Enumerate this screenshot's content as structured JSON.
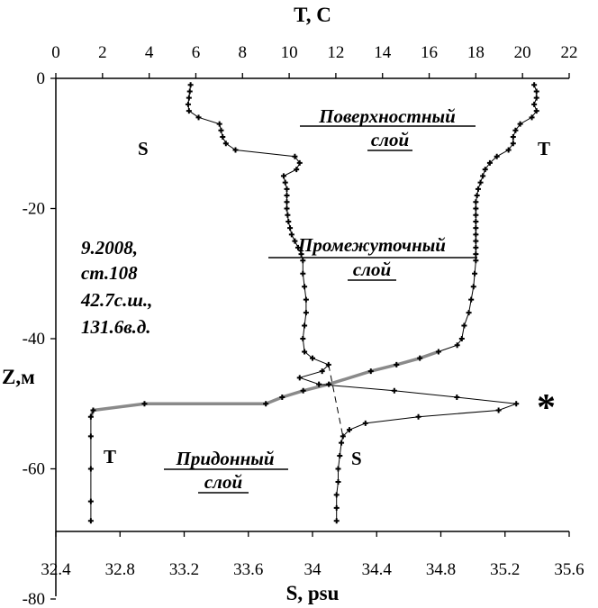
{
  "chart_data": {
    "type": "line",
    "title": "",
    "top_axis": {
      "label": "T, C",
      "range": [
        0,
        22
      ],
      "ticks": [
        "0",
        "2",
        "4",
        "6",
        "8",
        "10",
        "12",
        "14",
        "16",
        "18",
        "20",
        "22"
      ]
    },
    "bottom_axis": {
      "label": "S, psu",
      "range": [
        32.4,
        35.6
      ],
      "ticks": [
        "32.4",
        "32.8",
        "33.2",
        "33.6",
        "34",
        "34.4",
        "34.8",
        "35.2",
        "35.6"
      ]
    },
    "left_axis": {
      "label": "Z,м",
      "range": [
        0,
        -80
      ],
      "ticks": [
        "0",
        "-20",
        "-40",
        "-60",
        "-80"
      ]
    },
    "grid": false,
    "series": [
      {
        "name": "S",
        "color": "#000000",
        "points": [
          [
            33.24,
            -1
          ],
          [
            33.235,
            -2
          ],
          [
            33.23,
            -3
          ],
          [
            33.225,
            -4
          ],
          [
            33.23,
            -5
          ],
          [
            33.29,
            -6
          ],
          [
            33.42,
            -7
          ],
          [
            33.43,
            -8
          ],
          [
            33.44,
            -9
          ],
          [
            33.46,
            -10
          ],
          [
            33.52,
            -11
          ],
          [
            33.89,
            -12
          ],
          [
            33.92,
            -13
          ],
          [
            33.9,
            -14
          ],
          [
            33.82,
            -15
          ],
          [
            33.83,
            -16
          ],
          [
            33.84,
            -17
          ],
          [
            33.84,
            -18
          ],
          [
            33.84,
            -19
          ],
          [
            33.84,
            -20
          ],
          [
            33.845,
            -21
          ],
          [
            33.85,
            -22
          ],
          [
            33.86,
            -23
          ],
          [
            33.87,
            -24
          ],
          [
            33.89,
            -25
          ],
          [
            33.91,
            -26
          ],
          [
            33.93,
            -27
          ],
          [
            33.94,
            -28
          ],
          [
            33.94,
            -30
          ],
          [
            33.95,
            -32
          ],
          [
            33.96,
            -34
          ],
          [
            33.96,
            -36
          ],
          [
            33.95,
            -38
          ],
          [
            33.94,
            -40
          ],
          [
            33.95,
            -42
          ],
          [
            34.0,
            -43
          ],
          [
            34.1,
            -44
          ],
          [
            34.06,
            -45
          ],
          [
            33.92,
            -46
          ],
          [
            34.04,
            -47
          ],
          [
            34.51,
            -48
          ],
          [
            34.9,
            -49
          ],
          [
            35.27,
            -50
          ],
          [
            35.16,
            -51
          ],
          [
            34.66,
            -52
          ],
          [
            34.33,
            -53
          ],
          [
            34.23,
            -54
          ],
          [
            34.19,
            -55
          ],
          [
            34.18,
            -56
          ],
          [
            34.17,
            -58
          ],
          [
            34.16,
            -60
          ],
          [
            34.16,
            -62
          ],
          [
            34.15,
            -64
          ],
          [
            34.15,
            -66
          ],
          [
            34.15,
            -68
          ]
        ]
      },
      {
        "name": "T",
        "color": "#000000",
        "points": [
          [
            20.5,
            -1
          ],
          [
            20.6,
            -2
          ],
          [
            20.6,
            -3
          ],
          [
            20.5,
            -4
          ],
          [
            20.6,
            -5
          ],
          [
            20.4,
            -6
          ],
          [
            19.9,
            -7
          ],
          [
            19.7,
            -8
          ],
          [
            19.6,
            -9
          ],
          [
            19.6,
            -10
          ],
          [
            19.4,
            -11
          ],
          [
            18.9,
            -12
          ],
          [
            18.6,
            -13
          ],
          [
            18.4,
            -14
          ],
          [
            18.3,
            -15
          ],
          [
            18.2,
            -16
          ],
          [
            18.1,
            -17
          ],
          [
            18.05,
            -18
          ],
          [
            18.0,
            -19
          ],
          [
            18.0,
            -20
          ],
          [
            18.0,
            -21
          ],
          [
            18.0,
            -22
          ],
          [
            18.0,
            -23
          ],
          [
            18.0,
            -24
          ],
          [
            18.0,
            -25
          ],
          [
            18.0,
            -26
          ],
          [
            18.0,
            -27
          ],
          [
            18.0,
            -28
          ],
          [
            17.95,
            -30
          ],
          [
            17.9,
            -32
          ],
          [
            17.8,
            -34
          ],
          [
            17.7,
            -36
          ],
          [
            17.5,
            -38
          ],
          [
            17.4,
            -40
          ],
          [
            17.2,
            -41
          ],
          [
            16.4,
            -42
          ],
          [
            15.6,
            -43
          ],
          [
            14.6,
            -44
          ],
          [
            13.5,
            -45
          ],
          [
            11.7,
            -47
          ],
          [
            10.6,
            -48
          ],
          [
            9.7,
            -49
          ],
          [
            9.0,
            -50
          ],
          [
            3.8,
            -50
          ],
          [
            1.6,
            -51
          ],
          [
            1.5,
            -52
          ],
          [
            1.5,
            -55
          ],
          [
            1.5,
            -60
          ],
          [
            1.5,
            -65
          ],
          [
            1.5,
            -68
          ]
        ]
      }
    ],
    "annotations": {
      "surface_layer": [
        "Поверхностный",
        "слой"
      ],
      "intermediate_layer": [
        "Промежуточный",
        "слой"
      ],
      "bottom_layer": [
        "Придонный",
        "слой"
      ],
      "station_info": [
        "9.2008,",
        "ст.108",
        "42.7с.ш.,",
        "131.6в.д."
      ],
      "curve_labels": {
        "s_top": "S",
        "t_top": "T",
        "t_bottom": "T",
        "s_bottom": "S"
      },
      "marker": "*"
    }
  }
}
